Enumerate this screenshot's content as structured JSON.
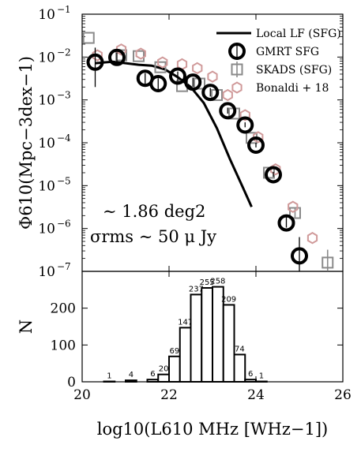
{
  "chart_data": [
    {
      "type": "scatter",
      "panel": "luminosity-function",
      "xlabel": "log10(L610 MHz [WHz−1])",
      "ylabel": "Φ610(Mpc−3dex−1)",
      "xlim": [
        20,
        26
      ],
      "ylim": [
        1e-07,
        0.1
      ],
      "yscale": "log",
      "ytick_exponents": [
        -1,
        -2,
        -3,
        -4,
        -5,
        -6,
        -7
      ],
      "annotation_area": "∼ 1.86 deg2",
      "annotation_sigma": "σrms ∼ 50 μ Jy",
      "legend_position": "top-right",
      "series": [
        {
          "name": "Local LF (SFG)",
          "marker": "line",
          "color": "#000000",
          "x": [
            20.3,
            20.7,
            21.0,
            21.3,
            21.6,
            21.9,
            22.2,
            22.5,
            22.8,
            23.1,
            23.4,
            23.7,
            23.9
          ],
          "y": [
            0.0072,
            0.0078,
            0.0072,
            0.0066,
            0.0063,
            0.0052,
            0.0034,
            0.002,
            0.00085,
            0.00022,
            4.2e-05,
            9e-06,
            3.2e-06
          ]
        },
        {
          "name": "GMRT SFG",
          "marker": "circle",
          "color": "#000000",
          "x": [
            20.3,
            20.8,
            21.45,
            21.75,
            22.2,
            22.55,
            22.95,
            23.35,
            23.75,
            24.0,
            24.4,
            24.7,
            25.0
          ],
          "y": [
            0.0076,
            0.0098,
            0.0032,
            0.0024,
            0.0036,
            0.0026,
            0.0015,
            0.00056,
            0.00026,
            8.8e-05,
            1.8e-05,
            1.35e-06,
            2.3e-07
          ],
          "yerr_low": [
            0.0056,
            0.0022,
            0.0009,
            0.0007,
            0.0009,
            0.0006,
            0.0003,
            8e-05,
            3e-05,
            1e-05,
            2e-06,
            3e-07,
            1.3e-07
          ],
          "yerr_high": [
            0.009,
            0.003,
            0.001,
            0.0008,
            0.001,
            0.0007,
            0.0004,
            0.0001,
            4e-05,
            1.2e-05,
            3e-06,
            5e-07,
            4e-07
          ]
        },
        {
          "name": "SKADS (SFG)",
          "marker": "square",
          "color": "#8a8a8a",
          "x": [
            20.15,
            20.9,
            21.3,
            21.8,
            22.3,
            22.7,
            23.1,
            23.5,
            23.9,
            24.3,
            24.9,
            25.65
          ],
          "y": [
            0.028,
            0.011,
            0.0105,
            0.0058,
            0.0021,
            0.0024,
            0.0013,
            0.00048,
            0.00013,
            2e-05,
            2.3e-06,
            1.6e-07
          ],
          "yerr_low": [
            0,
            0,
            0,
            0,
            0,
            0,
            0,
            0,
            0,
            0,
            5e-07,
            8e-08
          ],
          "yerr_high": [
            0,
            0,
            0,
            0,
            0,
            0,
            0,
            0,
            0,
            0,
            8e-07,
            1.6e-07
          ]
        },
        {
          "name": "Bonaldi + 18",
          "marker": "hexagon",
          "color": "#d09a9a",
          "x": [
            20.35,
            20.9,
            21.35,
            21.85,
            22.3,
            22.65,
            23.0,
            23.35,
            23.75,
            24.05,
            24.45,
            24.85,
            25.3
          ],
          "y": [
            0.011,
            0.015,
            0.012,
            0.0075,
            0.0068,
            0.0055,
            0.0035,
            0.0013,
            0.00044,
            0.000135,
            2.4e-05,
            3.2e-06,
            6e-07
          ]
        }
      ]
    },
    {
      "type": "bar",
      "panel": "histogram",
      "xlabel": "log10(L610 MHz [WHz−1])",
      "ylabel": "N",
      "xlim": [
        20,
        26
      ],
      "ylim": [
        0,
        300
      ],
      "yticks": [
        0,
        100,
        200
      ],
      "xticks": [
        20,
        22,
        24,
        26
      ],
      "bin_width": 0.25,
      "bin_left_edges": [
        20.5,
        20.75,
        21.0,
        21.25,
        21.5,
        21.75,
        22.0,
        22.25,
        22.5,
        22.75,
        23.0,
        23.25,
        23.5,
        23.75,
        24.0,
        24.25,
        24.5,
        24.75,
        25.0
      ],
      "values": [
        1,
        0,
        4,
        0,
        6,
        20,
        69,
        147,
        237,
        255,
        258,
        209,
        74,
        6,
        1,
        0,
        0,
        0,
        0
      ]
    }
  ]
}
